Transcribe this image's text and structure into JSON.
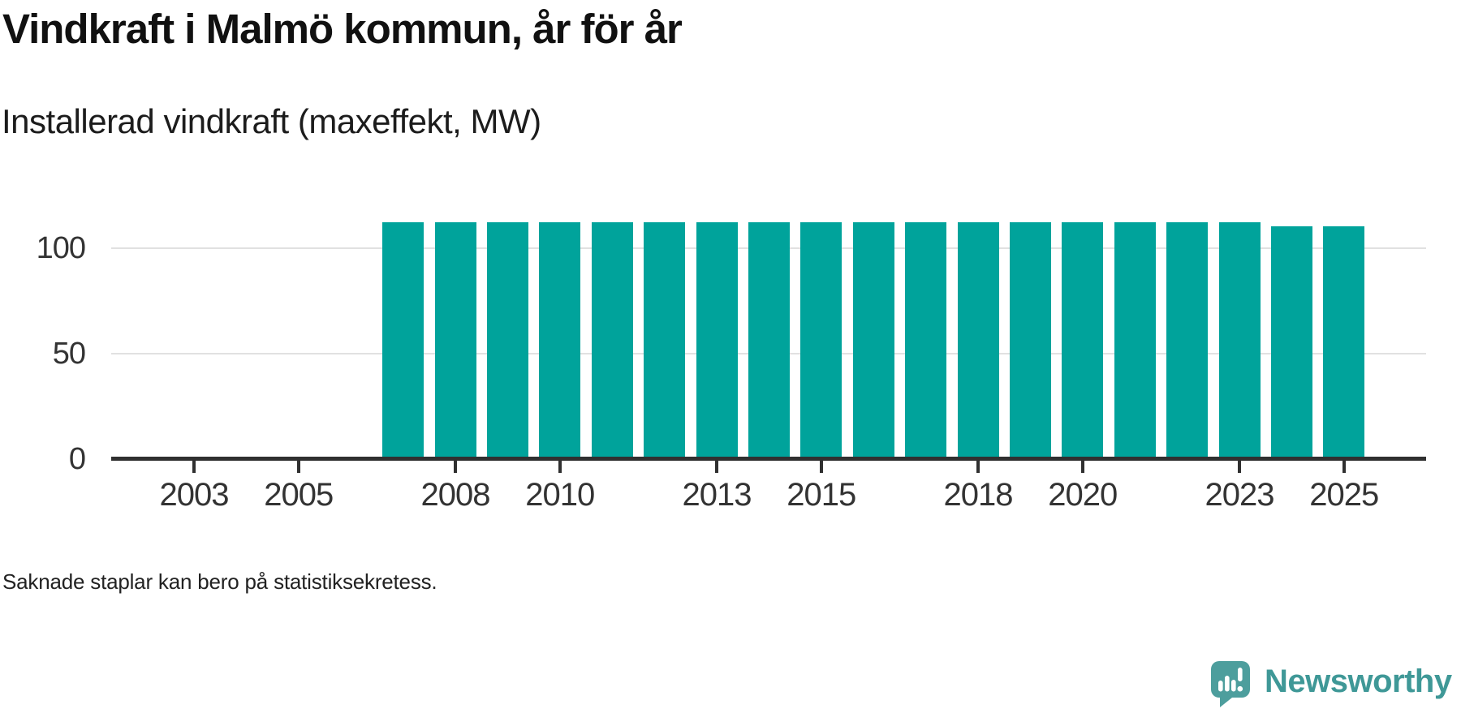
{
  "header": {
    "title": "Vindkraft i Malmö kommun, år för år",
    "subtitle": "Installerad vindkraft (maxeffekt, MW)"
  },
  "footer": {
    "note": "Saknade staplar kan bero på statistiksekretess."
  },
  "logo": {
    "brand": "Newsworthy",
    "icon": "newsworthy-speech-bubble-bar-chart-icon"
  },
  "colors": {
    "bar": "#00a39b",
    "axis": "#303030",
    "gridline": "#e1e1e1",
    "title_text": "#111111",
    "tick_text": "#333333",
    "logo_teal": "#3f9897",
    "logo_bubble_teal": "#4d9e9d"
  },
  "chart_data": {
    "type": "bar",
    "title": "Vindkraft i Malmö kommun, år för år",
    "subtitle": "Installerad vindkraft (maxeffekt, MW)",
    "xlabel": "",
    "ylabel": "Installerad vindkraft (maxeffekt, MW)",
    "unit": "MW",
    "categories": [
      2002,
      2003,
      2004,
      2005,
      2006,
      2007,
      2008,
      2009,
      2010,
      2011,
      2012,
      2013,
      2014,
      2015,
      2016,
      2017,
      2018,
      2019,
      2020,
      2021,
      2022,
      2023,
      2024,
      2025
    ],
    "values": [
      null,
      null,
      null,
      null,
      null,
      112.5,
      112.5,
      112.5,
      112.5,
      112.5,
      112.5,
      112.5,
      112.5,
      112.5,
      112.5,
      112.5,
      112.5,
      112.5,
      112.5,
      112.5,
      112.5,
      112.5,
      110.4,
      110.4
    ],
    "missing_years_note": "Saknade staplar kan bero på statistiksekretess.",
    "x_tick_labels": [
      "2003",
      "2005",
      "2008",
      "2010",
      "2013",
      "2015",
      "2018",
      "2020",
      "2023",
      "2025"
    ],
    "x_tick_years": [
      2003,
      2005,
      2008,
      2010,
      2013,
      2015,
      2018,
      2020,
      2023,
      2025
    ],
    "y_ticks": [
      0,
      50,
      100
    ],
    "y_tick_labels": [
      "0",
      "50",
      "100"
    ],
    "ylim": [
      0,
      126
    ],
    "xlim": [
      2001.4,
      2026.6
    ],
    "grid": "horizontal-only",
    "legend": "none",
    "bar_color": "#00a39b"
  }
}
